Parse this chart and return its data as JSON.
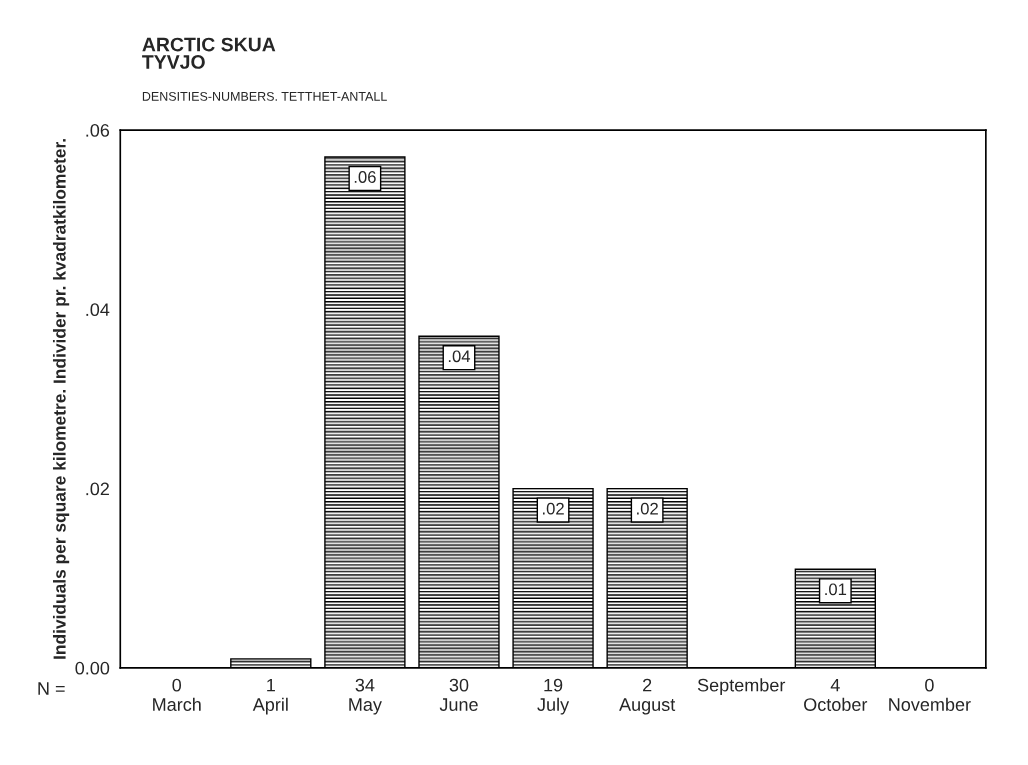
{
  "chart_data": {
    "type": "bar",
    "title": "ARCTIC SKUA\nTYVJO",
    "subtitle": "DENSITIES-NUMBERS. TETTHET-ANTALL",
    "ylabel": "Individuals per square kilometre. Individer pr. kvadratkilometer.",
    "categories": [
      "0\nMarch",
      "1\nApril",
      "34\nMay",
      "30\nJune",
      "19\nJuly",
      "2\nAugust",
      "September",
      "4\nOctober",
      "0\nNovember"
    ],
    "values": [
      0,
      0.001,
      0.057,
      0.037,
      0.02,
      0.02,
      0,
      0.011,
      0
    ],
    "value_labels": [
      null,
      null,
      ".06",
      ".04",
      ".02",
      ".02",
      null,
      ".01",
      null
    ],
    "color": "#000000",
    "ylim": [
      0,
      0.06
    ],
    "yticks": [
      {
        "value": 0,
        "label": "0.00"
      },
      {
        "value": 0.02,
        "label": ".02"
      },
      {
        "value": 0.04,
        "label": ".04"
      },
      {
        "value": 0.06,
        "label": ".06"
      }
    ],
    "annotations": [
      "N ="
    ],
    "grid": false,
    "legend": false
  }
}
